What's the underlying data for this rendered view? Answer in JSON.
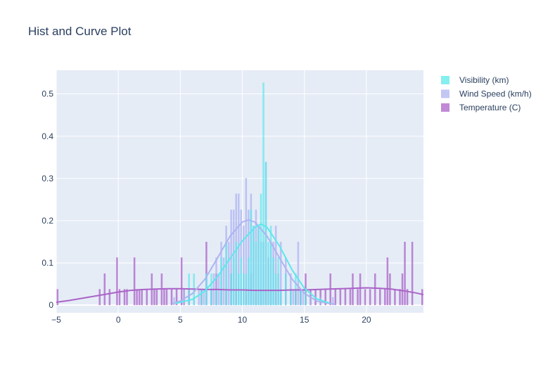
{
  "chart_data": {
    "type": "bar",
    "title": "Hist and Curve Plot",
    "xlabel": "",
    "ylabel": "",
    "xlim": [
      -5,
      24.6
    ],
    "ylim": [
      -0.018,
      0.556
    ],
    "grid": true,
    "legend_position": "top-right",
    "x_ticks": [
      -5,
      0,
      5,
      10,
      15,
      20
    ],
    "y_ticks": [
      0,
      0.1,
      0.2,
      0.3,
      0.4,
      0.5
    ],
    "bin_width": 0.2,
    "series": [
      {
        "name": "Temperature (C)",
        "color": "#ab63c8",
        "opacity": 0.75,
        "bins": [
          [
            -5.0,
            0.038
          ],
          [
            -1.6,
            0.038
          ],
          [
            -1.2,
            0.075
          ],
          [
            -0.8,
            0.038
          ],
          [
            -0.2,
            0.113
          ],
          [
            0.0,
            0.038
          ],
          [
            0.4,
            0.038
          ],
          [
            0.6,
            0.038
          ],
          [
            1.2,
            0.113
          ],
          [
            1.4,
            0.038
          ],
          [
            1.6,
            0.038
          ],
          [
            1.8,
            0.038
          ],
          [
            2.2,
            0.038
          ],
          [
            2.6,
            0.075
          ],
          [
            2.8,
            0.038
          ],
          [
            3.0,
            0.038
          ],
          [
            3.4,
            0.075
          ],
          [
            3.6,
            0.038
          ],
          [
            3.8,
            0.038
          ],
          [
            4.2,
            0.038
          ],
          [
            4.6,
            0.038
          ],
          [
            5.0,
            0.113
          ],
          [
            5.2,
            0.038
          ],
          [
            5.6,
            0.038
          ],
          [
            6.6,
            0.038
          ],
          [
            7.0,
            0.15
          ],
          [
            7.4,
            0.038
          ],
          [
            7.8,
            0.075
          ],
          [
            8.2,
            0.038
          ],
          [
            8.6,
            0.038
          ],
          [
            9.0,
            0.075
          ],
          [
            9.4,
            0.038
          ],
          [
            9.8,
            0.038
          ],
          [
            10.2,
            0.038
          ],
          [
            10.6,
            0.075
          ],
          [
            11.0,
            0.038
          ],
          [
            11.4,
            0.038
          ],
          [
            11.8,
            0.038
          ],
          [
            12.2,
            0.038
          ],
          [
            12.6,
            0.038
          ],
          [
            13.0,
            0.038
          ],
          [
            13.4,
            0.075
          ],
          [
            13.8,
            0.038
          ],
          [
            14.2,
            0.038
          ],
          [
            14.6,
            0.038
          ],
          [
            15.0,
            0.075
          ],
          [
            15.4,
            0.038
          ],
          [
            15.8,
            0.038
          ],
          [
            16.2,
            0.038
          ],
          [
            16.6,
            0.038
          ],
          [
            17.0,
            0.075
          ],
          [
            17.4,
            0.038
          ],
          [
            17.8,
            0.038
          ],
          [
            18.2,
            0.038
          ],
          [
            18.6,
            0.038
          ],
          [
            18.8,
            0.075
          ],
          [
            19.2,
            0.038
          ],
          [
            19.4,
            0.075
          ],
          [
            19.8,
            0.038
          ],
          [
            20.2,
            0.038
          ],
          [
            20.6,
            0.075
          ],
          [
            21.0,
            0.038
          ],
          [
            21.4,
            0.038
          ],
          [
            21.6,
            0.113
          ],
          [
            21.8,
            0.075
          ],
          [
            22.2,
            0.038
          ],
          [
            22.6,
            0.038
          ],
          [
            22.8,
            0.075
          ],
          [
            23.0,
            0.15
          ],
          [
            23.2,
            0.038
          ],
          [
            23.6,
            0.15
          ],
          [
            24.4,
            0.038
          ]
        ],
        "curve": [
          [
            -5.0,
            0.007
          ],
          [
            -4.0,
            0.011
          ],
          [
            -3.0,
            0.016
          ],
          [
            -2.0,
            0.021
          ],
          [
            -1.0,
            0.026
          ],
          [
            0.0,
            0.031
          ],
          [
            1.0,
            0.035
          ],
          [
            2.0,
            0.037
          ],
          [
            3.0,
            0.038
          ],
          [
            4.0,
            0.039
          ],
          [
            5.0,
            0.039
          ],
          [
            6.0,
            0.038
          ],
          [
            7.0,
            0.037
          ],
          [
            8.0,
            0.037
          ],
          [
            9.0,
            0.036
          ],
          [
            10.0,
            0.036
          ],
          [
            11.0,
            0.035
          ],
          [
            12.0,
            0.035
          ],
          [
            13.0,
            0.035
          ],
          [
            14.0,
            0.036
          ],
          [
            15.0,
            0.036
          ],
          [
            16.0,
            0.037
          ],
          [
            17.0,
            0.038
          ],
          [
            18.0,
            0.039
          ],
          [
            19.0,
            0.04
          ],
          [
            20.0,
            0.041
          ],
          [
            21.0,
            0.04
          ],
          [
            22.0,
            0.038
          ],
          [
            23.0,
            0.034
          ],
          [
            24.0,
            0.029
          ],
          [
            24.6,
            0.025
          ]
        ]
      },
      {
        "name": "Wind Speed (km/h)",
        "color": "#aeb4f0",
        "opacity": 0.75,
        "bins": [
          [
            4.4,
            0.019
          ],
          [
            5.2,
            0.038
          ],
          [
            6.0,
            0.019
          ],
          [
            6.4,
            0.038
          ],
          [
            6.8,
            0.038
          ],
          [
            7.0,
            0.075
          ],
          [
            7.4,
            0.038
          ],
          [
            7.6,
            0.075
          ],
          [
            7.8,
            0.113
          ],
          [
            8.0,
            0.075
          ],
          [
            8.2,
            0.15
          ],
          [
            8.4,
            0.113
          ],
          [
            8.6,
            0.188
          ],
          [
            8.8,
            0.15
          ],
          [
            9.0,
            0.226
          ],
          [
            9.2,
            0.226
          ],
          [
            9.4,
            0.264
          ],
          [
            9.6,
            0.264
          ],
          [
            9.8,
            0.226
          ],
          [
            10.0,
            0.188
          ],
          [
            10.2,
            0.301
          ],
          [
            10.4,
            0.226
          ],
          [
            10.6,
            0.264
          ],
          [
            10.8,
            0.188
          ],
          [
            11.0,
            0.226
          ],
          [
            11.2,
            0.188
          ],
          [
            11.4,
            0.15
          ],
          [
            11.6,
            0.15
          ],
          [
            11.8,
            0.339
          ],
          [
            12.0,
            0.113
          ],
          [
            12.2,
            0.15
          ],
          [
            12.4,
            0.15
          ],
          [
            12.6,
            0.188
          ],
          [
            12.8,
            0.075
          ],
          [
            13.0,
            0.15
          ],
          [
            13.4,
            0.113
          ],
          [
            13.8,
            0.075
          ],
          [
            14.0,
            0.038
          ],
          [
            14.4,
            0.15
          ],
          [
            14.8,
            0.038
          ],
          [
            15.4,
            0.019
          ],
          [
            16.2,
            0.019
          ],
          [
            17.2,
            0.019
          ]
        ],
        "curve": [
          [
            4.4,
            0.004
          ],
          [
            5.0,
            0.01
          ],
          [
            6.0,
            0.028
          ],
          [
            7.0,
            0.062
          ],
          [
            8.0,
            0.112
          ],
          [
            9.0,
            0.163
          ],
          [
            10.0,
            0.197
          ],
          [
            10.5,
            0.202
          ],
          [
            11.0,
            0.197
          ],
          [
            12.0,
            0.163
          ],
          [
            13.0,
            0.112
          ],
          [
            14.0,
            0.062
          ],
          [
            15.0,
            0.028
          ],
          [
            16.0,
            0.01
          ],
          [
            17.0,
            0.004
          ],
          [
            17.5,
            0.002
          ]
        ]
      },
      {
        "name": "Visibility (km)",
        "color": "#5ce8ec",
        "opacity": 0.7,
        "bins": [
          [
            5.6,
            0.075
          ],
          [
            6.0,
            0.075
          ],
          [
            6.6,
            0.038
          ],
          [
            7.0,
            0.075
          ],
          [
            7.4,
            0.075
          ],
          [
            7.8,
            0.038
          ],
          [
            8.2,
            0.113
          ],
          [
            8.6,
            0.15
          ],
          [
            9.0,
            0.075
          ],
          [
            9.2,
            0.113
          ],
          [
            9.4,
            0.15
          ],
          [
            9.6,
            0.075
          ],
          [
            9.8,
            0.113
          ],
          [
            10.0,
            0.075
          ],
          [
            10.2,
            0.075
          ],
          [
            10.4,
            0.113
          ],
          [
            10.6,
            0.226
          ],
          [
            10.8,
            0.188
          ],
          [
            11.0,
            0.15
          ],
          [
            11.2,
            0.188
          ],
          [
            11.4,
            0.264
          ],
          [
            11.6,
            0.527
          ],
          [
            11.8,
            0.339
          ],
          [
            12.0,
            0.15
          ],
          [
            12.2,
            0.188
          ],
          [
            12.4,
            0.113
          ],
          [
            12.6,
            0.075
          ],
          [
            12.8,
            0.113
          ],
          [
            13.0,
            0.038
          ],
          [
            13.4,
            0.075
          ],
          [
            13.8,
            0.038
          ],
          [
            14.2,
            0.075
          ],
          [
            14.6,
            0.038
          ],
          [
            15.0,
            0.038
          ]
        ],
        "curve": [
          [
            4.6,
            0.004
          ],
          [
            6.0,
            0.014
          ],
          [
            7.0,
            0.034
          ],
          [
            8.0,
            0.068
          ],
          [
            9.0,
            0.11
          ],
          [
            10.0,
            0.152
          ],
          [
            11.0,
            0.184
          ],
          [
            11.5,
            0.192
          ],
          [
            12.0,
            0.184
          ],
          [
            13.0,
            0.14
          ],
          [
            14.0,
            0.084
          ],
          [
            15.0,
            0.04
          ],
          [
            16.0,
            0.015
          ],
          [
            17.0,
            0.005
          ]
        ]
      }
    ],
    "legend": [
      {
        "name": "Visibility (km)",
        "color": "#5ce8ec"
      },
      {
        "name": "Wind Speed (km/h)",
        "color": "#aeb4f0"
      },
      {
        "name": "Temperature (C)",
        "color": "#ab63c8"
      }
    ]
  }
}
